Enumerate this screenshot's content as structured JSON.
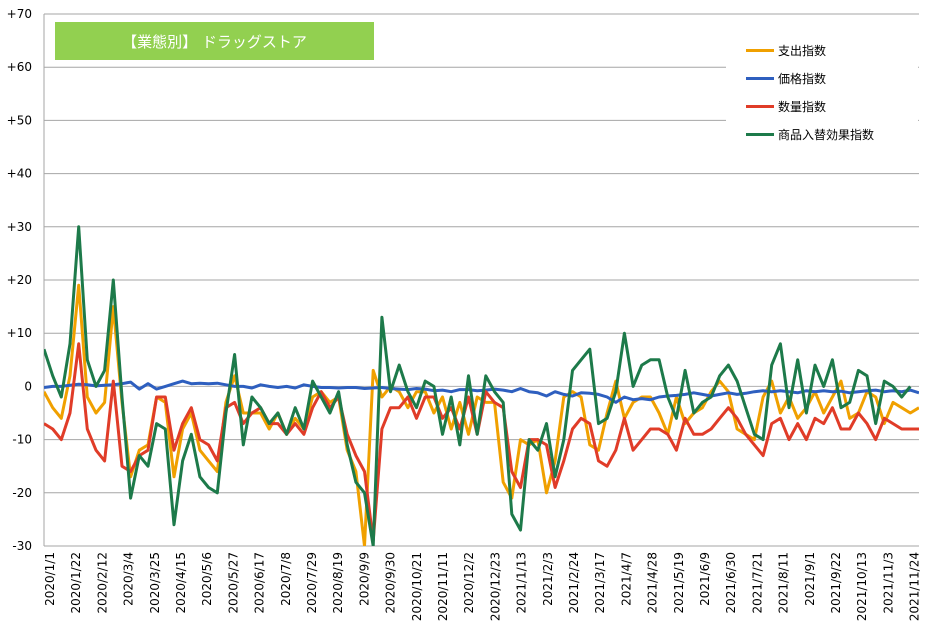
{
  "chart_data": {
    "type": "line",
    "title": "【業態別】 ドラッグストア",
    "ylim": [
      -30,
      70
    ],
    "yticks": [
      "+70",
      "+60",
      "+50",
      "+40",
      "+30",
      "+20",
      "+10",
      "0",
      "-10",
      "-20",
      "-30"
    ],
    "ytick_values": [
      70,
      60,
      50,
      40,
      30,
      20,
      10,
      0,
      -10,
      -20,
      -30
    ],
    "grid": true,
    "legend_position": "top-right",
    "xtick_labels": [
      "2020/1/1",
      "2020/1/22",
      "2020/2/12",
      "2020/3/4",
      "2020/3/25",
      "2020/4/15",
      "2020/5/6",
      "2020/5/27",
      "2020/6/17",
      "2020/7/8",
      "2020/7/29",
      "2020/8/19",
      "2020/9/9",
      "2020/9/30",
      "2020/10/21",
      "2020/11/11",
      "2020/12/2",
      "2020/12/23",
      "2021/1/13",
      "2021/2/3",
      "2021/2/24",
      "2021/3/17",
      "2021/4/7",
      "2021/4/28",
      "2021/5/19",
      "2021/6/9",
      "2021/6/30",
      "2021/7/21",
      "2021/8/11",
      "2021/9/1",
      "2021/9/22",
      "2021/10/13",
      "2021/11/3",
      "2021/11/24"
    ],
    "series": [
      {
        "name": "支出指数",
        "color": "#f0a000",
        "values": [
          -1,
          -4,
          -6,
          2,
          19,
          -2,
          -5,
          -3,
          15,
          -3,
          -17,
          -12,
          -11,
          -2,
          -3,
          -17,
          -8,
          -5,
          -12,
          -14,
          -16,
          -3,
          2,
          -5,
          -5,
          -5,
          -8,
          -5,
          -9,
          -6,
          -8,
          -2,
          -1,
          -3,
          -2,
          -12,
          -16,
          -30,
          3,
          -2,
          0,
          -1,
          -4,
          -1,
          -1,
          -5,
          -2,
          -8,
          -3,
          -9,
          -2,
          -3,
          -3,
          -18,
          -21,
          -10,
          -11,
          -10,
          -20,
          -14,
          -2,
          -1,
          -2,
          -11,
          -12,
          -5,
          1,
          -6,
          -3,
          -2,
          -2,
          -5,
          -9,
          -2,
          -7,
          -5,
          -4,
          -1,
          1,
          -1,
          -8,
          -9,
          -10,
          -2,
          1,
          -5,
          -2,
          -6,
          -4,
          -1,
          -5,
          -2,
          1,
          -6,
          -5,
          -1,
          -2,
          -7,
          -3,
          -4,
          -5,
          -4
        ]
      },
      {
        "name": "価格指数",
        "color": "#2e5fbf",
        "values": [
          -0.2,
          0,
          0,
          0.2,
          0.4,
          0.3,
          0.1,
          0.2,
          0.3,
          0.5,
          0.8,
          -0.5,
          0.5,
          -0.5,
          0,
          0.5,
          1,
          0.5,
          0.6,
          0.5,
          0.6,
          0.3,
          0,
          0,
          -0.3,
          0.3,
          0,
          -0.2,
          0,
          -0.3,
          0.3,
          0,
          -0.2,
          -0.2,
          -0.3,
          -0.2,
          -0.2,
          -0.4,
          -0.3,
          -0.2,
          -0.4,
          -0.5,
          -0.6,
          -0.4,
          -0.5,
          -0.8,
          -0.7,
          -1,
          -0.6,
          -0.6,
          -0.8,
          -0.7,
          -0.5,
          -0.7,
          -1,
          -0.4,
          -1,
          -1.2,
          -1.8,
          -1,
          -1.5,
          -1.8,
          -1.2,
          -1.3,
          -1.5,
          -2,
          -3,
          -2,
          -2.5,
          -2.3,
          -2.5,
          -2,
          -1.8,
          -1.7,
          -1.5,
          -1.2,
          -1.5,
          -1.8,
          -1.5,
          -1.2,
          -1.5,
          -1.3,
          -1,
          -0.8,
          -1,
          -0.8,
          -1,
          -1.2,
          -0.8,
          -1,
          -0.8,
          -1,
          -0.9,
          -1.2,
          -1,
          -0.8,
          -0.7,
          -1,
          -0.8,
          -1,
          -0.7,
          -1.2
        ]
      },
      {
        "name": "数量指数",
        "color": "#e03c28",
        "values": [
          -7,
          -8,
          -10,
          -5,
          8,
          -8,
          -12,
          -14,
          1,
          -15,
          -16,
          -13,
          -12,
          -2,
          -2,
          -12,
          -7,
          -4,
          -10,
          -11,
          -14,
          -4,
          -3,
          -7,
          -5,
          -4,
          -7,
          -7,
          -9,
          -7,
          -9,
          -4,
          -1,
          -4,
          -2,
          -9,
          -13,
          -16,
          -29,
          -8,
          -4,
          -4,
          -2,
          -6,
          -2,
          -2,
          -6,
          -4,
          -8,
          -2,
          -9,
          -1,
          -3,
          -4,
          -16,
          -19,
          -10,
          -10,
          -11,
          -19,
          -14,
          -8,
          -6,
          -7,
          -14,
          -15,
          -12,
          -6,
          -12,
          -10,
          -8,
          -8,
          -9,
          -12,
          -6,
          -9,
          -9,
          -8,
          -6,
          -4,
          -6,
          -9,
          -11,
          -13,
          -7,
          -6,
          -10,
          -7,
          -10,
          -6,
          -7,
          -4,
          -8,
          -8,
          -5,
          -7,
          -10,
          -6,
          -7,
          -8,
          -8,
          -8
        ]
      },
      {
        "name": "商品入替効果指数",
        "color": "#1d7a4a",
        "values": [
          7,
          2,
          -2,
          8,
          30,
          5,
          0,
          3,
          20,
          -2,
          -21,
          -13,
          -15,
          -7,
          -8,
          -26,
          -14,
          -9,
          -17,
          -19,
          -20,
          -5,
          6,
          -11,
          -2,
          -4,
          -7,
          -5,
          -9,
          -4,
          -8,
          1,
          -2,
          -5,
          -1,
          -11,
          -18,
          -20,
          -30,
          13,
          -1,
          4,
          -1,
          -4,
          1,
          0,
          -9,
          -2,
          -11,
          2,
          -9,
          2,
          -1,
          -3,
          -24,
          -27,
          -10,
          -12,
          -7,
          -17,
          -10,
          3,
          5,
          7,
          -7,
          -6,
          -1,
          10,
          0,
          4,
          5,
          5,
          -2,
          -6,
          3,
          -5,
          -3,
          -2,
          2,
          4,
          1,
          -4,
          -9,
          -10,
          4,
          8,
          -4,
          5,
          -5,
          4,
          0,
          5,
          -4,
          -3,
          3,
          2,
          -7,
          1,
          0,
          -2,
          0
        ]
      }
    ]
  }
}
